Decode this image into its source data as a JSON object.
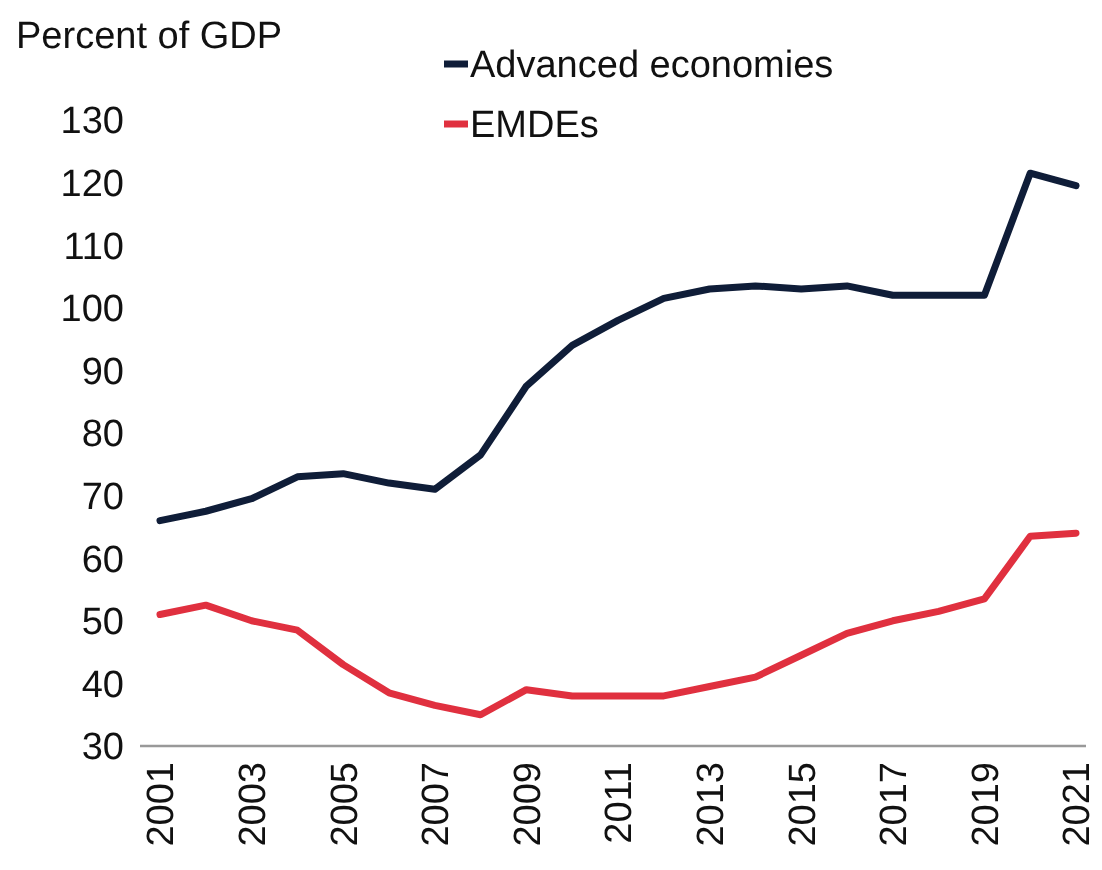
{
  "chart_data": {
    "type": "line",
    "ylabel": "Percent of GDP",
    "categories": [
      "2001",
      null,
      "2003",
      null,
      "2005",
      null,
      "2007",
      null,
      "2009",
      null,
      "2011",
      null,
      "2013",
      null,
      "2015",
      null,
      "2017",
      null,
      "2019",
      null,
      "2021"
    ],
    "series": [
      {
        "name": "Advanced economies",
        "color": "#0f1d38",
        "values": [
          66,
          67.5,
          69.5,
          73,
          73.5,
          72,
          71,
          76.5,
          87.5,
          94,
          98,
          101.5,
          103,
          103.5,
          103,
          103.5,
          102,
          102,
          102,
          121.5,
          119.5
        ]
      },
      {
        "name": "EMDEs",
        "color": "#e0303f",
        "values": [
          51,
          52.5,
          50,
          48.5,
          43,
          38.5,
          36.5,
          35,
          39,
          38,
          38,
          38,
          39.5,
          41,
          44.5,
          48,
          50,
          51.5,
          53.5,
          63.5,
          64
        ]
      }
    ],
    "ylim": [
      30,
      130
    ],
    "yticks": [
      30,
      40,
      50,
      60,
      70,
      80,
      90,
      100,
      110,
      120,
      130
    ],
    "grid": false,
    "legend": "top",
    "marker": "none",
    "line_style": "solid"
  }
}
